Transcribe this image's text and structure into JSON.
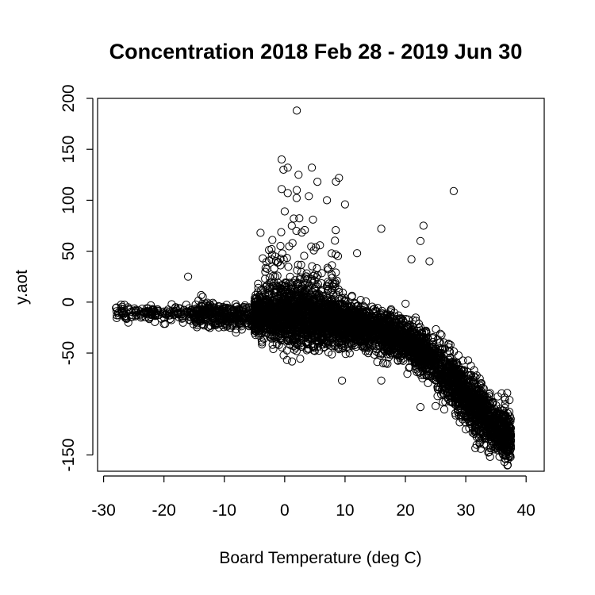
{
  "chart_data": {
    "type": "scatter",
    "title": "Concentration  2018 Feb 28 - 2019 Jun 30",
    "xlabel": "Board Temperature (deg C)",
    "ylabel": "y.aot",
    "xlim": [
      -31,
      43
    ],
    "ylim": [
      -166,
      200
    ],
    "xticks": [
      -30,
      -20,
      -10,
      0,
      10,
      20,
      30,
      40
    ],
    "yticks": [
      -150,
      -50,
      0,
      50,
      100,
      150,
      200
    ],
    "marker": "open-circle",
    "grid": false,
    "legend": "none",
    "trend": {
      "x": [
        -28,
        -22,
        -16,
        -10,
        -5,
        0,
        3,
        6,
        10,
        14,
        18,
        22,
        26,
        28,
        30,
        32,
        34,
        36,
        37
      ],
      "y": [
        -10,
        -11,
        -12,
        -13,
        -13,
        -13,
        -14,
        -16,
        -20,
        -26,
        -33,
        -45,
        -65,
        -78,
        -92,
        -105,
        -118,
        -128,
        -132
      ]
    },
    "outliers": [
      {
        "x": 2,
        "y": 188
      },
      {
        "x": -0.5,
        "y": 140
      },
      {
        "x": 0.5,
        "y": 132
      },
      {
        "x": -0.2,
        "y": 130
      },
      {
        "x": 4.5,
        "y": 132
      },
      {
        "x": 2.3,
        "y": 125
      },
      {
        "x": 9,
        "y": 122
      },
      {
        "x": 28,
        "y": 109
      },
      {
        "x": -0.5,
        "y": 111
      },
      {
        "x": 0.5,
        "y": 107
      },
      {
        "x": 2,
        "y": 110
      },
      {
        "x": 4,
        "y": 104
      },
      {
        "x": 7,
        "y": 100
      },
      {
        "x": 10,
        "y": 96
      },
      {
        "x": 0,
        "y": 89
      },
      {
        "x": 1.5,
        "y": 82
      },
      {
        "x": 16,
        "y": 72
      },
      {
        "x": 23,
        "y": 75
      },
      {
        "x": 22.5,
        "y": 60
      },
      {
        "x": 24,
        "y": 40
      },
      {
        "x": 21,
        "y": 42
      },
      {
        "x": -16,
        "y": 25
      },
      {
        "x": -4,
        "y": 68
      },
      {
        "x": 12,
        "y": 48
      },
      {
        "x": 9.5,
        "y": -77
      },
      {
        "x": 16,
        "y": -77
      },
      {
        "x": 22.5,
        "y": -103
      },
      {
        "x": 25,
        "y": -102
      },
      {
        "x": 30,
        "y": -125
      },
      {
        "x": 29,
        "y": -118
      }
    ]
  }
}
